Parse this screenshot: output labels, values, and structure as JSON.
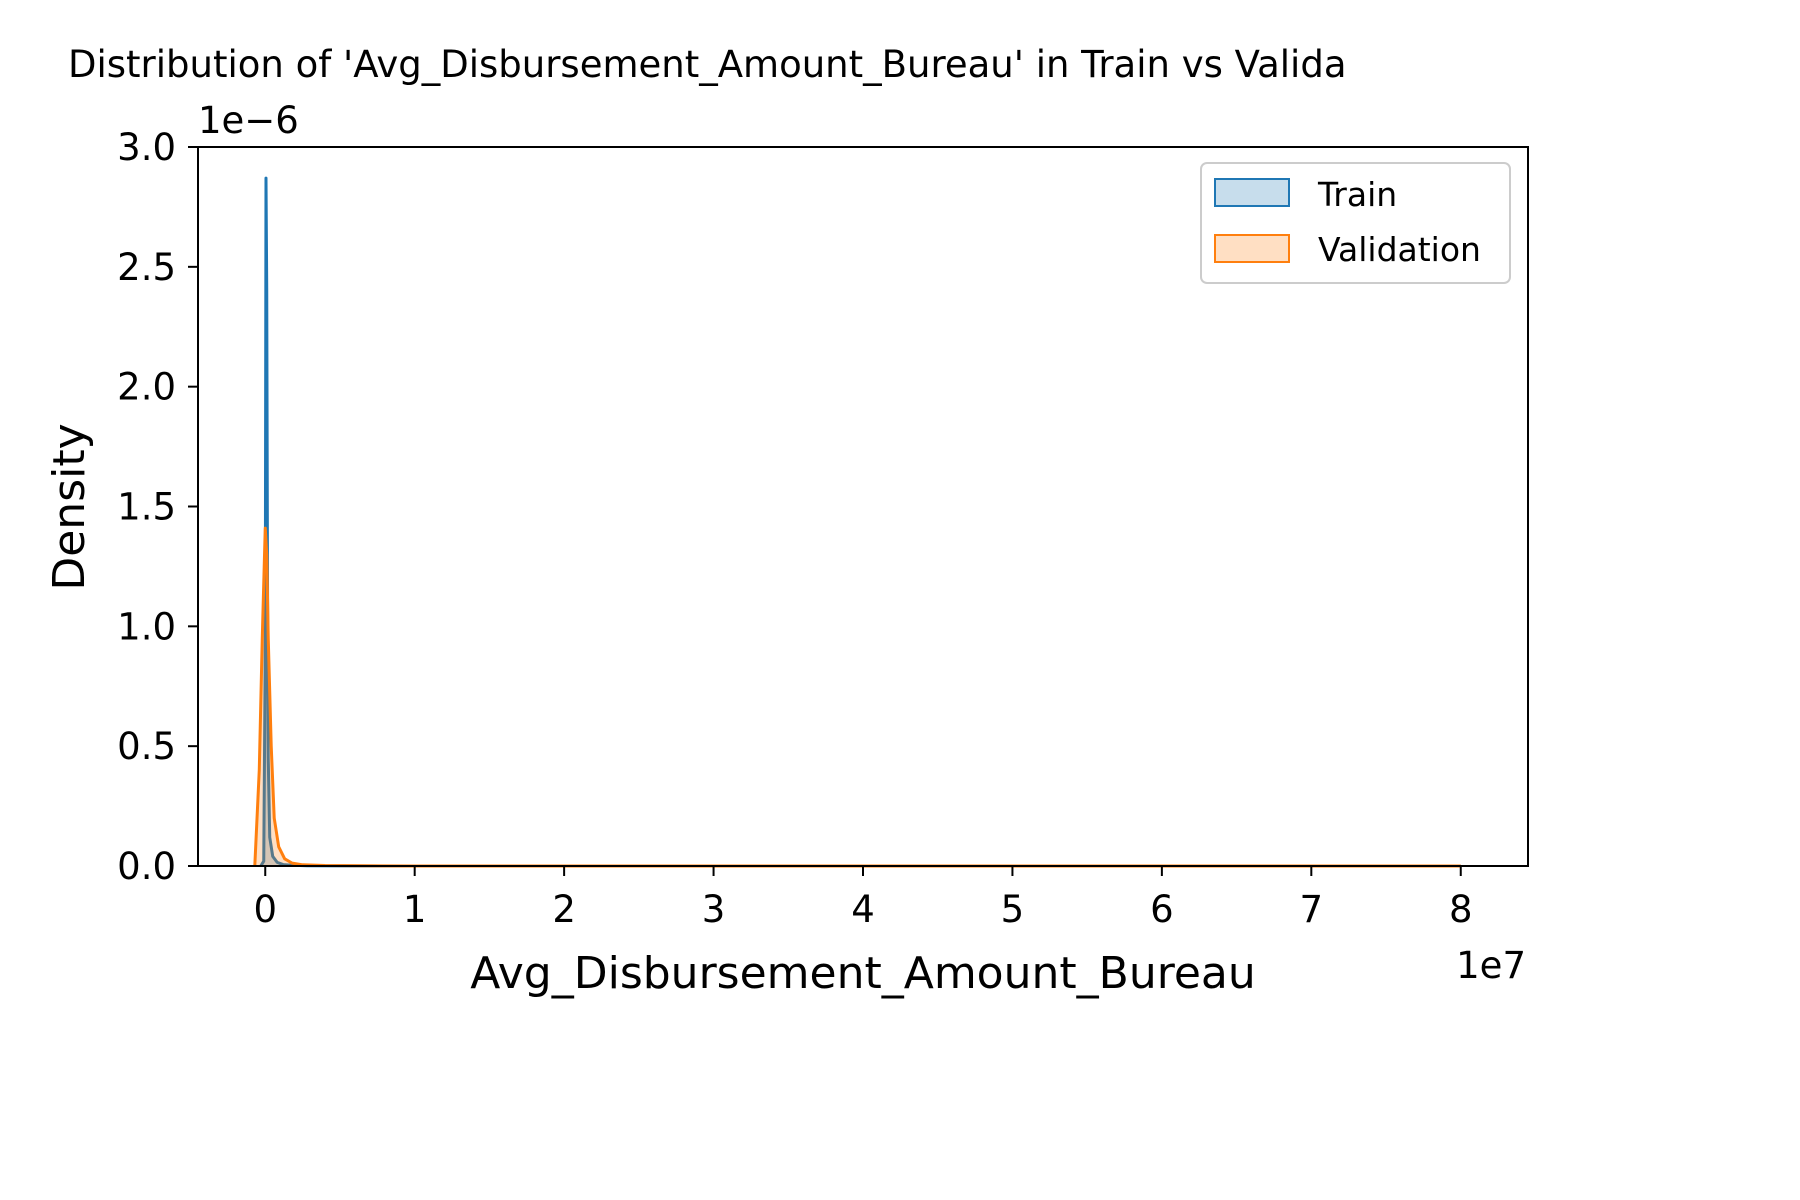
{
  "chart_data": {
    "type": "area",
    "title": "Distribution of 'Avg_Disbursement_Amount_Bureau' in Train vs Valida",
    "xlabel": "Avg_Disbursement_Amount_Bureau",
    "ylabel": "Density",
    "x_offset_label": "1e7",
    "y_offset_label": "1e−6",
    "xlim": [
      -4500000,
      84500000
    ],
    "ylim": [
      0,
      3.0
    ],
    "x_unit_scale": 10000000,
    "y_unit_scale": 1e-06,
    "xticks": [
      0,
      10000000,
      20000000,
      30000000,
      40000000,
      50000000,
      60000000,
      70000000,
      80000000
    ],
    "xtick_labels": [
      "0",
      "1",
      "2",
      "3",
      "4",
      "5",
      "6",
      "7",
      "8"
    ],
    "yticks": [
      0,
      0.5,
      1.0,
      1.5,
      2.0,
      2.5,
      3.0
    ],
    "ytick_labels": [
      "0.0",
      "0.5",
      "1.0",
      "1.5",
      "2.0",
      "2.5",
      "3.0"
    ],
    "grid": false,
    "legend_position": "upper right",
    "series": [
      {
        "name": "Train",
        "color": "#1f77b4",
        "fill_opacity": 0.25,
        "x": [
          -300000,
          -100000,
          0,
          50000,
          100000,
          150000,
          200000,
          300000,
          500000,
          800000,
          1200000,
          1800000,
          2800000,
          5000000,
          20000000,
          50000000,
          80000000
        ],
        "y": [
          0.0,
          0.02,
          0.9,
          2.87,
          2.4,
          1.2,
          0.45,
          0.12,
          0.04,
          0.015,
          0.006,
          0.003,
          0.001,
          0.0003,
          0.0,
          0.0,
          0.0
        ]
      },
      {
        "name": "Validation",
        "color": "#ff7f0e",
        "fill_opacity": 0.25,
        "x": [
          -700000,
          -400000,
          -200000,
          0,
          100000,
          200000,
          400000,
          600000,
          900000,
          1300000,
          1800000,
          2500000,
          4000000,
          10000000,
          40000000,
          80000000
        ],
        "y": [
          0.0,
          0.4,
          0.95,
          1.41,
          1.3,
          0.95,
          0.5,
          0.2,
          0.08,
          0.03,
          0.012,
          0.005,
          0.002,
          0.0,
          0.0,
          0.0
        ]
      }
    ]
  }
}
